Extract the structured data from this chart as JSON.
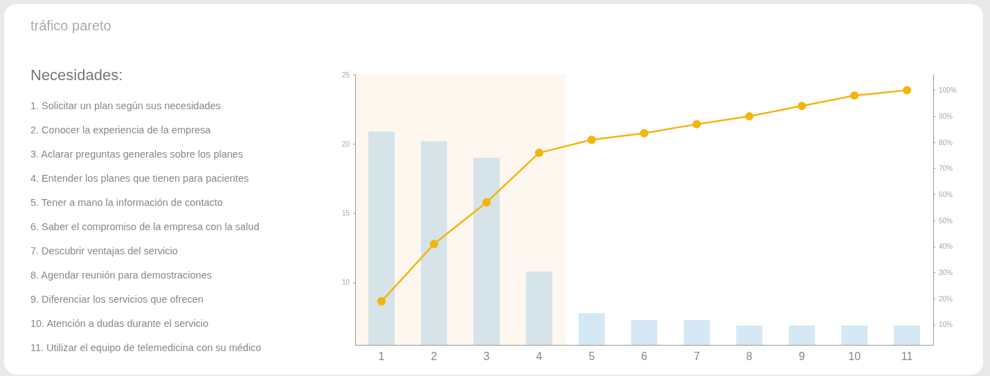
{
  "chart_data": {
    "type": "bar",
    "title": "tráfico pareto",
    "subtitle": "Necesidades:",
    "annotations": [
      "1. Solicitar un plan según sus necesidades",
      "2. Conocer la experiencia de la empresa",
      "3. Aclarar preguntas generales sobre los planes",
      "4. Entender los planes que tienen para pacientes",
      "5. Tener a mano la información de contacto",
      "6. Saber el compromiso de la empresa con la salud",
      "7. Descubrir ventajas del servicio",
      "8. Agendar reunión para demostraciones",
      "9. Diferenciar los servicios que ofrecen",
      "10. Atención a dudas durante el servicio",
      "11. Utilizar el equipo de telemedicina con su médico"
    ],
    "categories": [
      "1",
      "2",
      "3",
      "4",
      "5",
      "6",
      "7",
      "8",
      "9",
      "10",
      "11"
    ],
    "series": [
      {
        "colors": [
          "#d6e4ea",
          "#d6e4ea",
          "#d6e4ea",
          "#d6e4ea",
          "#d5e9f4",
          "#d5e9f4",
          "#d5e9f4",
          "#d5e9f4",
          "#d5e9f4",
          "#d5e9f4",
          "#d5e9f4"
        ],
        "values": [
          20.9,
          20.2,
          19.0,
          10.8,
          7.8,
          7.3,
          7.3,
          6.9,
          6.9,
          6.9,
          6.9
        ]
      },
      {
        "type": "line",
        "axis": "y2",
        "color": "#f5b40a",
        "marker": "circle",
        "line_style": "solid",
        "values": [
          19,
          41,
          57,
          76,
          81,
          83.5,
          87,
          90,
          94,
          98,
          100
        ]
      }
    ],
    "ylim": [
      5.5,
      25
    ],
    "yticks": [
      10,
      15,
      20,
      25
    ],
    "y2lim": [
      2.3,
      106
    ],
    "y2ticks": [
      {
        "value": 10,
        "label": "10%"
      },
      {
        "value": 20,
        "label": "20%"
      },
      {
        "value": 30,
        "label": "30%"
      },
      {
        "value": 40,
        "label": "40%"
      },
      {
        "value": 50,
        "label": "50%"
      },
      {
        "value": 60,
        "label": "60%"
      },
      {
        "value": 70,
        "label": "70%"
      },
      {
        "value": 80,
        "label": "80%"
      },
      {
        "value": 90,
        "label": "90%"
      },
      {
        "value": 100,
        "label": "100%"
      }
    ],
    "bands": [
      {
        "axis": "x",
        "from": "1",
        "to": "4",
        "color": "#fdf7ef"
      }
    ],
    "grid": false
  }
}
